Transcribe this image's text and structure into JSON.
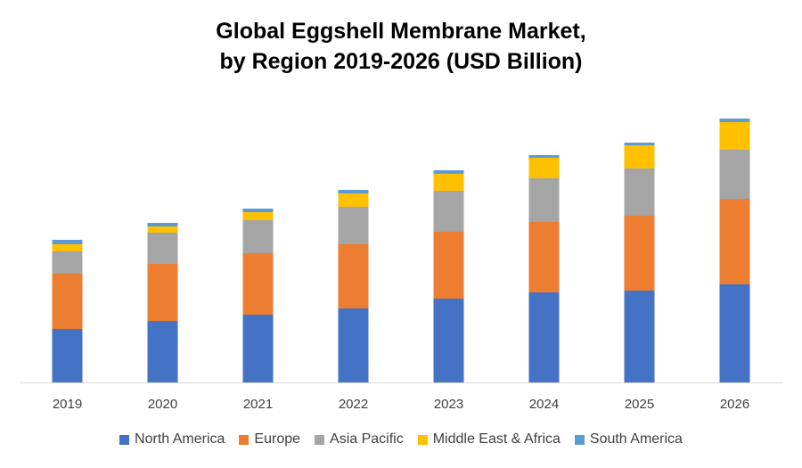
{
  "chart_data": {
    "type": "bar",
    "stacked": true,
    "title_lines": [
      "Global Eggshell Membrane Market,",
      "by Region 2019-2026 (USD Billion)"
    ],
    "categories": [
      "2019",
      "2020",
      "2021",
      "2022",
      "2023",
      "2024",
      "2025",
      "2026"
    ],
    "series": [
      {
        "name": "North America",
        "color": "#4472C4",
        "values": [
          60,
          69,
          76,
          83,
          94,
          101,
          103,
          110
        ]
      },
      {
        "name": "Europe",
        "color": "#ED7D31",
        "values": [
          62,
          64,
          69,
          72,
          75,
          79,
          84,
          96
        ]
      },
      {
        "name": "Asia Pacific",
        "color": "#A5A5A5",
        "values": [
          25,
          35,
          37,
          42,
          46,
          49,
          53,
          55
        ]
      },
      {
        "name": "Middle East & Africa",
        "color": "#FFC000",
        "values": [
          8,
          7,
          9,
          15,
          19,
          23,
          26,
          31
        ]
      },
      {
        "name": "South America",
        "color": "#5B9BD5",
        "values": [
          5,
          4,
          4,
          4,
          4,
          3,
          3,
          4
        ]
      }
    ],
    "xlabel": "",
    "ylabel": "",
    "ylim": [
      0,
      300
    ],
    "grid": false,
    "legend_position": "bottom"
  }
}
